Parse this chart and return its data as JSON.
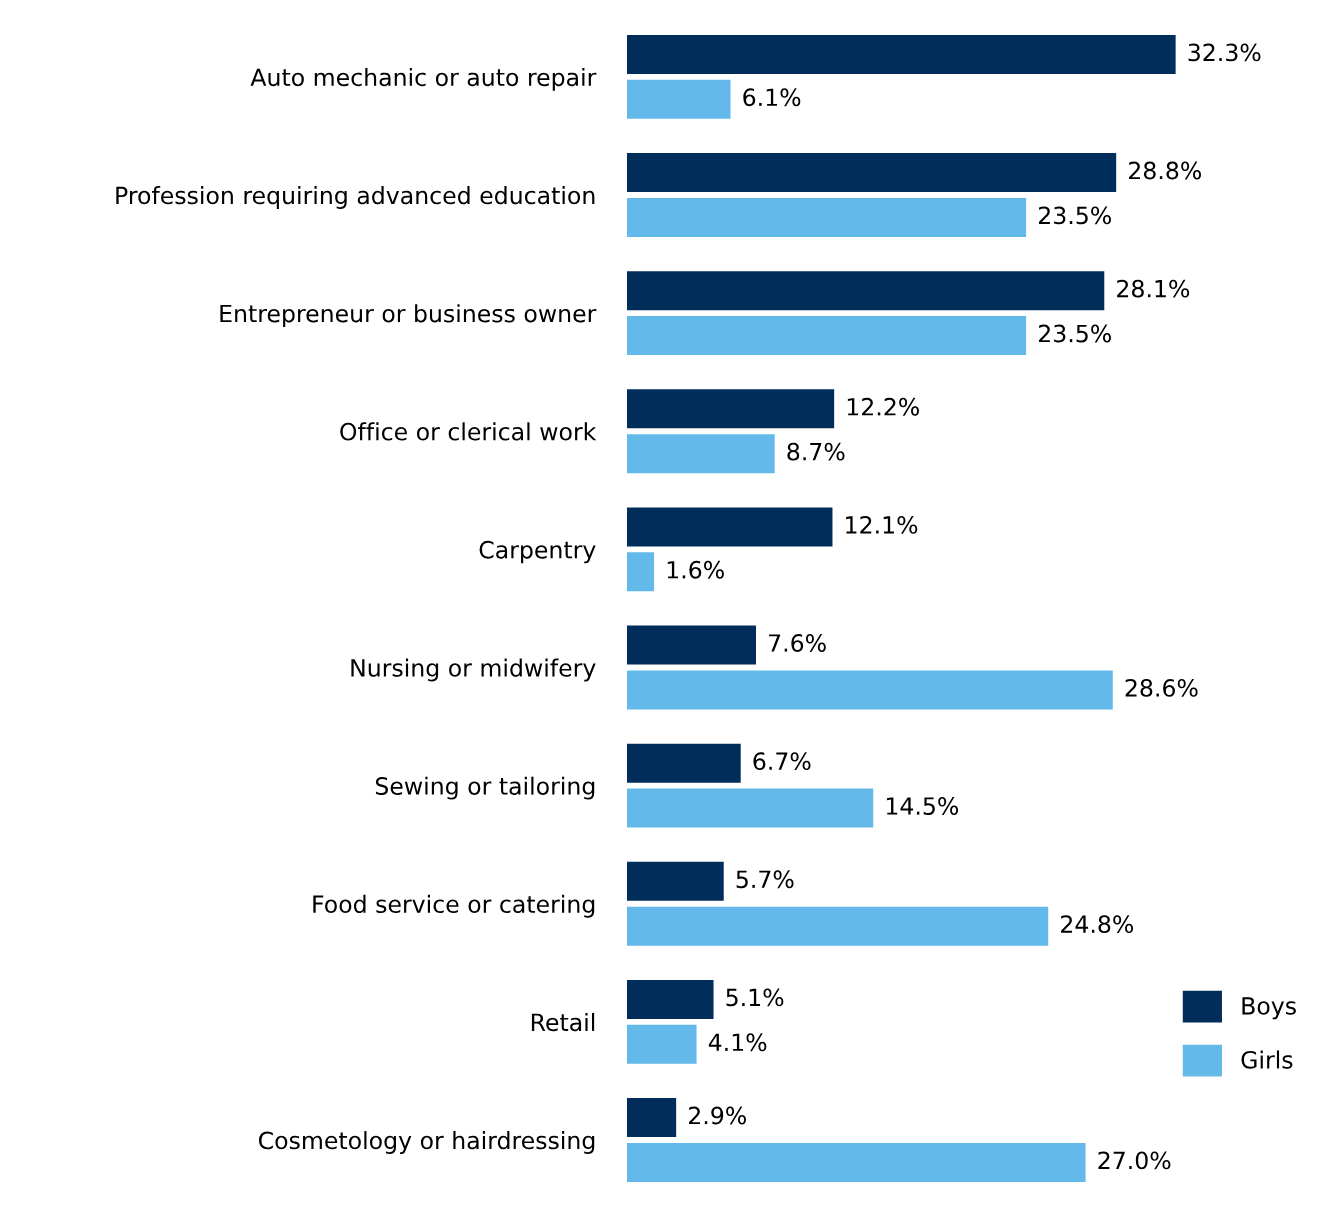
{
  "chart_data": {
    "type": "bar",
    "orientation": "horizontal",
    "legend": "bottom right",
    "grid": false,
    "categories": [
      "Auto mechanic or auto repair",
      "Profession requiring advanced education",
      "Entrepreneur or business owner",
      "Office or clerical work",
      "Carpentry",
      "Nursing or midwifery",
      "Sewing or tailoring",
      "Food service or catering",
      "Retail",
      "Cosmetology or hairdressing"
    ],
    "series": [
      {
        "name": "Boys",
        "color": "#002d5a",
        "values": [
          32.3,
          28.8,
          28.1,
          12.2,
          12.1,
          7.6,
          6.7,
          5.7,
          5.1,
          2.9
        ],
        "value_labels": [
          "32.3%",
          "28.8%",
          "28.1%",
          "12.2%",
          "12.1%",
          "7.6%",
          "6.7%",
          "5.7%",
          "5.1%",
          "2.9%"
        ]
      },
      {
        "name": "Girls",
        "color": "#63b9e9",
        "values": [
          6.1,
          23.5,
          23.5,
          8.7,
          1.6,
          28.6,
          14.5,
          24.8,
          4.1,
          27.0
        ],
        "value_labels": [
          "6.1%",
          "23.5%",
          "23.5%",
          "8.7%",
          "1.6%",
          "28.6%",
          "14.5%",
          "24.8%",
          "4.1%",
          "27.0%"
        ]
      }
    ]
  }
}
